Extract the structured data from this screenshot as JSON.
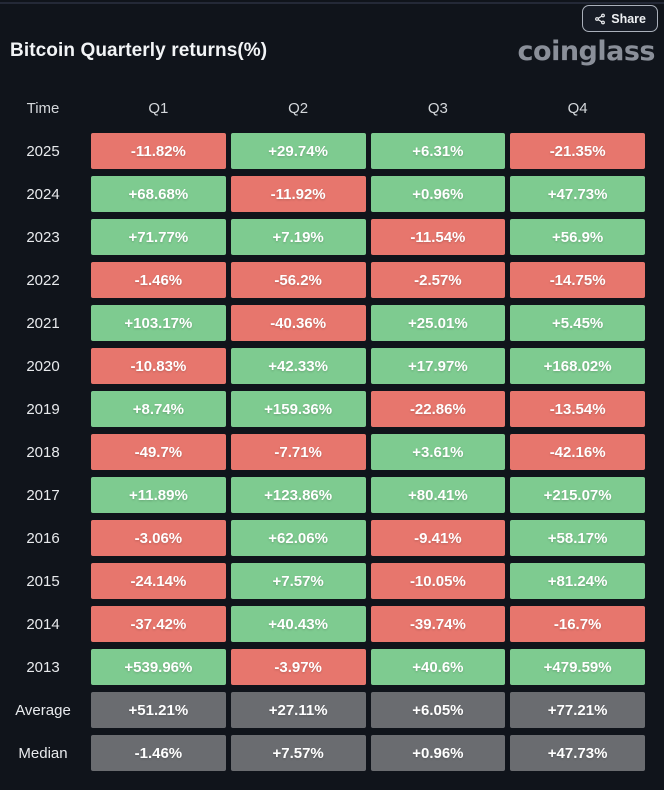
{
  "header": {
    "share_label": "Share",
    "title": "Bitcoin Quarterly returns(%)",
    "logo": "coinglass"
  },
  "icons": {
    "share": "share-nodes-icon"
  },
  "colors": {
    "background": "#10141b",
    "positive": "#7ecb90",
    "negative": "#e7766d",
    "summary": "#6a6c70",
    "title_text": "#f2f4f6",
    "logo_text": "#8a8f99",
    "cell_text": "#ffffff"
  },
  "chart_data": {
    "type": "heatmap",
    "title": "Bitcoin Quarterly returns(%)",
    "columns": [
      "Time",
      "Q1",
      "Q2",
      "Q3",
      "Q4"
    ],
    "legend": "green = positive return, red = negative return, gray = summary row",
    "rows": [
      {
        "label": "2025",
        "kind": "year",
        "values": [
          "-11.82%",
          "+29.74%",
          "+6.31%",
          "-21.35%"
        ]
      },
      {
        "label": "2024",
        "kind": "year",
        "values": [
          "+68.68%",
          "-11.92%",
          "+0.96%",
          "+47.73%"
        ]
      },
      {
        "label": "2023",
        "kind": "year",
        "values": [
          "+71.77%",
          "+7.19%",
          "-11.54%",
          "+56.9%"
        ]
      },
      {
        "label": "2022",
        "kind": "year",
        "values": [
          "-1.46%",
          "-56.2%",
          "-2.57%",
          "-14.75%"
        ]
      },
      {
        "label": "2021",
        "kind": "year",
        "values": [
          "+103.17%",
          "-40.36%",
          "+25.01%",
          "+5.45%"
        ]
      },
      {
        "label": "2020",
        "kind": "year",
        "values": [
          "-10.83%",
          "+42.33%",
          "+17.97%",
          "+168.02%"
        ]
      },
      {
        "label": "2019",
        "kind": "year",
        "values": [
          "+8.74%",
          "+159.36%",
          "-22.86%",
          "-13.54%"
        ]
      },
      {
        "label": "2018",
        "kind": "year",
        "values": [
          "-49.7%",
          "-7.71%",
          "+3.61%",
          "-42.16%"
        ]
      },
      {
        "label": "2017",
        "kind": "year",
        "values": [
          "+11.89%",
          "+123.86%",
          "+80.41%",
          "+215.07%"
        ]
      },
      {
        "label": "2016",
        "kind": "year",
        "values": [
          "-3.06%",
          "+62.06%",
          "-9.41%",
          "+58.17%"
        ]
      },
      {
        "label": "2015",
        "kind": "year",
        "values": [
          "-24.14%",
          "+7.57%",
          "-10.05%",
          "+81.24%"
        ]
      },
      {
        "label": "2014",
        "kind": "year",
        "values": [
          "-37.42%",
          "+40.43%",
          "-39.74%",
          "-16.7%"
        ]
      },
      {
        "label": "2013",
        "kind": "year",
        "values": [
          "+539.96%",
          "-3.97%",
          "+40.6%",
          "+479.59%"
        ]
      },
      {
        "label": "Average",
        "kind": "summary",
        "values": [
          "+51.21%",
          "+27.11%",
          "+6.05%",
          "+77.21%"
        ]
      },
      {
        "label": "Median",
        "kind": "summary",
        "values": [
          "-1.46%",
          "+7.57%",
          "+0.96%",
          "+47.73%"
        ]
      }
    ]
  }
}
